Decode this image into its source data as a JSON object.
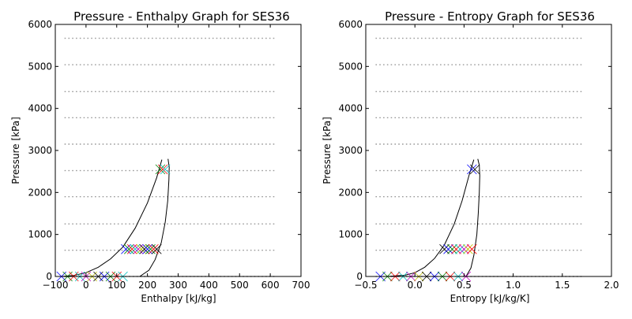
{
  "chart_data": [
    {
      "type": "line",
      "title": "Pressure - Enthalpy Graph for SES36",
      "xlabel": "Enthalpy [kJ/kg]",
      "ylabel": "Pressure [kPa]",
      "xlim": [
        -100,
        700
      ],
      "ylim": [
        0,
        6000
      ],
      "xticks": [
        -100,
        0,
        100,
        200,
        300,
        400,
        500,
        600,
        700
      ],
      "yticks": [
        0,
        1000,
        2000,
        3000,
        4000,
        5000,
        6000
      ],
      "xtick_labels": [
        "−100",
        "0",
        "100",
        "200",
        "300",
        "400",
        "500",
        "600",
        "700"
      ],
      "ytick_labels": [
        "0",
        "1000",
        "2000",
        "3000",
        "4000",
        "5000",
        "6000"
      ],
      "grid": false,
      "isobars": {
        "color": "#999999",
        "style": "dotted",
        "x_range": [
          -70,
          620
        ],
        "pressures": [
          0,
          625,
          1250,
          1900,
          2520,
          3150,
          3780,
          4400,
          5040,
          5670
        ]
      },
      "saturation_dome": {
        "color": "#000000",
        "liquid_line": [
          [
            -80,
            0
          ],
          [
            -40,
            25
          ],
          [
            0,
            90
          ],
          [
            40,
            220
          ],
          [
            80,
            420
          ],
          [
            120,
            700
          ],
          [
            160,
            1150
          ],
          [
            200,
            1750
          ],
          [
            230,
            2350
          ],
          [
            247,
            2780
          ]
        ],
        "vapor_line": [
          [
            175,
            0
          ],
          [
            205,
            150
          ],
          [
            225,
            400
          ],
          [
            245,
            800
          ],
          [
            258,
            1300
          ],
          [
            266,
            1800
          ],
          [
            270,
            2300
          ],
          [
            271,
            2600
          ],
          [
            267,
            2800
          ]
        ]
      },
      "state_markers": {
        "marker": "x",
        "colors": [
          "#0000ff",
          "#008000",
          "#ff0000",
          "#00bfbf",
          "#bf00bf",
          "#bfbf00",
          "#000000"
        ],
        "points": [
          {
            "x": 130,
            "y": 650,
            "c": 0
          },
          {
            "x": 140,
            "y": 650,
            "c": 1
          },
          {
            "x": 150,
            "y": 650,
            "c": 2
          },
          {
            "x": 160,
            "y": 650,
            "c": 3
          },
          {
            "x": 170,
            "y": 650,
            "c": 4
          },
          {
            "x": 180,
            "y": 650,
            "c": 5
          },
          {
            "x": 190,
            "y": 650,
            "c": 6
          },
          {
            "x": 200,
            "y": 650,
            "c": 0
          },
          {
            "x": 210,
            "y": 650,
            "c": 1
          },
          {
            "x": 220,
            "y": 650,
            "c": 2
          },
          {
            "x": 230,
            "y": 650,
            "c": 6
          },
          {
            "x": 242,
            "y": 2550,
            "c": 1
          },
          {
            "x": 250,
            "y": 2550,
            "c": 2
          },
          {
            "x": 258,
            "y": 2550,
            "c": 3
          },
          {
            "x": -80,
            "y": 0,
            "c": 0
          },
          {
            "x": -60,
            "y": 0,
            "c": 1
          },
          {
            "x": -40,
            "y": 0,
            "c": 2
          },
          {
            "x": -20,
            "y": 0,
            "c": 3
          },
          {
            "x": 0,
            "y": 0,
            "c": 4
          },
          {
            "x": 20,
            "y": 0,
            "c": 5
          },
          {
            "x": 40,
            "y": 0,
            "c": 6
          },
          {
            "x": 60,
            "y": 0,
            "c": 0
          },
          {
            "x": 80,
            "y": 0,
            "c": 1
          },
          {
            "x": 100,
            "y": 0,
            "c": 2
          },
          {
            "x": 120,
            "y": 0,
            "c": 3
          }
        ]
      }
    },
    {
      "type": "line",
      "title": "Pressure - Entropy Graph for SES36",
      "xlabel": "Entropy [kJ/kg/K]",
      "ylabel": "Pressure [kPa]",
      "xlim": [
        -0.5,
        2.0
      ],
      "ylim": [
        0,
        6000
      ],
      "xticks": [
        -0.5,
        0.0,
        0.5,
        1.0,
        1.5,
        2.0
      ],
      "yticks": [
        0,
        1000,
        2000,
        3000,
        4000,
        5000,
        6000
      ],
      "xtick_labels": [
        "−0.5",
        "0.0",
        "0.5",
        "1.0",
        "1.5",
        "2.0"
      ],
      "ytick_labels": [
        "0",
        "1000",
        "2000",
        "3000",
        "4000",
        "5000",
        "6000"
      ],
      "grid": false,
      "isobars": {
        "color": "#999999",
        "style": "dotted",
        "x_range": [
          -0.4,
          1.7
        ],
        "pressures": [
          0,
          625,
          1250,
          1900,
          2520,
          3150,
          3780,
          4400,
          5040,
          5670
        ]
      },
      "saturation_dome": {
        "color": "#000000",
        "liquid_line": [
          [
            -0.28,
            0
          ],
          [
            -0.1,
            30
          ],
          [
            0.0,
            90
          ],
          [
            0.1,
            220
          ],
          [
            0.2,
            430
          ],
          [
            0.3,
            750
          ],
          [
            0.4,
            1250
          ],
          [
            0.48,
            1800
          ],
          [
            0.55,
            2400
          ],
          [
            0.6,
            2780
          ]
        ],
        "vapor_line": [
          [
            0.52,
            0
          ],
          [
            0.57,
            200
          ],
          [
            0.6,
            500
          ],
          [
            0.63,
            1000
          ],
          [
            0.645,
            1500
          ],
          [
            0.655,
            2000
          ],
          [
            0.66,
            2400
          ],
          [
            0.655,
            2650
          ],
          [
            0.64,
            2800
          ]
        ]
      },
      "state_markers": {
        "marker": "x",
        "colors": [
          "#0000ff",
          "#008000",
          "#ff0000",
          "#00bfbf",
          "#bf00bf",
          "#bfbf00",
          "#000000"
        ],
        "points": [
          {
            "x": 0.3,
            "y": 650,
            "c": 6
          },
          {
            "x": 0.34,
            "y": 650,
            "c": 0
          },
          {
            "x": 0.38,
            "y": 650,
            "c": 1
          },
          {
            "x": 0.42,
            "y": 650,
            "c": 2
          },
          {
            "x": 0.46,
            "y": 650,
            "c": 3
          },
          {
            "x": 0.5,
            "y": 650,
            "c": 4
          },
          {
            "x": 0.54,
            "y": 650,
            "c": 5
          },
          {
            "x": 0.58,
            "y": 650,
            "c": 2
          },
          {
            "x": 0.58,
            "y": 2550,
            "c": 0
          },
          {
            "x": 0.61,
            "y": 2550,
            "c": 6
          },
          {
            "x": -0.35,
            "y": 0,
            "c": 0
          },
          {
            "x": -0.28,
            "y": 0,
            "c": 1
          },
          {
            "x": -0.2,
            "y": 0,
            "c": 2
          },
          {
            "x": -0.12,
            "y": 0,
            "c": 3
          },
          {
            "x": -0.04,
            "y": 0,
            "c": 4
          },
          {
            "x": 0.04,
            "y": 0,
            "c": 5
          },
          {
            "x": 0.12,
            "y": 0,
            "c": 6
          },
          {
            "x": 0.2,
            "y": 0,
            "c": 0
          },
          {
            "x": 0.28,
            "y": 0,
            "c": 1
          },
          {
            "x": 0.36,
            "y": 0,
            "c": 2
          },
          {
            "x": 0.44,
            "y": 0,
            "c": 3
          },
          {
            "x": 0.52,
            "y": 0,
            "c": 4
          }
        ]
      }
    }
  ]
}
